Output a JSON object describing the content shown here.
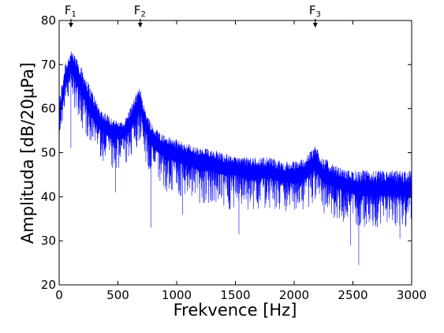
{
  "chart_data": {
    "type": "line",
    "title": "",
    "xlabel": "Frekvence [Hz]",
    "ylabel": "Amplituda [dB/20μPa]",
    "xlim": [
      0,
      3000
    ],
    "ylim": [
      20,
      80
    ],
    "x_ticks": [
      0,
      500,
      1000,
      1500,
      2000,
      2500,
      3000
    ],
    "y_ticks": [
      20,
      30,
      40,
      50,
      60,
      70,
      80
    ],
    "grid": false,
    "legend": "none",
    "series_color": "#0000ff",
    "markers": [
      {
        "label": "F",
        "sub": "1",
        "x": 100
      },
      {
        "label": "F",
        "sub": "2",
        "x": 690
      },
      {
        "label": "F",
        "sub": "3",
        "x": 2180
      }
    ],
    "series": [
      {
        "x": [
          0,
          50,
          100,
          150,
          200,
          250,
          300,
          350,
          400,
          450,
          500,
          550,
          600,
          650,
          690,
          730,
          800,
          900,
          1000,
          1100,
          1200,
          1300,
          1400,
          1500,
          1600,
          1700,
          1800,
          1900,
          2000,
          2100,
          2180,
          2250,
          2350,
          2450,
          2550,
          2650,
          2750,
          2850,
          2950,
          3000
        ],
        "mean": [
          57,
          66,
          70,
          68,
          65,
          62,
          59,
          57,
          56,
          55,
          55,
          55,
          57,
          60,
          62,
          57,
          53,
          51,
          50,
          49,
          48,
          48,
          47,
          47,
          46,
          46,
          46,
          45,
          45,
          46,
          48,
          45,
          44,
          43,
          42,
          42,
          42,
          42,
          42,
          42
        ],
        "upper": [
          62,
          71,
          73,
          72,
          69,
          66,
          63,
          60,
          59,
          58,
          57,
          57,
          60,
          63,
          65,
          60,
          56,
          54,
          53,
          52,
          51,
          51,
          50,
          49,
          49,
          49,
          49,
          48,
          48,
          49,
          52,
          49,
          47,
          46,
          46,
          46,
          46,
          46,
          46,
          46
        ],
        "lower": [
          52,
          60,
          62,
          59,
          55,
          52,
          50,
          49,
          47,
          46,
          46,
          46,
          47,
          50,
          53,
          48,
          43,
          41,
          40,
          39,
          38,
          38,
          37,
          37,
          37,
          37,
          37,
          36,
          36,
          37,
          39,
          36,
          35,
          34,
          33,
          33,
          33,
          33,
          33,
          33
        ],
        "dips": [
          {
            "x": 780,
            "y": 33
          },
          {
            "x": 1530,
            "y": 31.5
          },
          {
            "x": 2550,
            "y": 24.5
          },
          {
            "x": 2480,
            "y": 29
          },
          {
            "x": 2900,
            "y": 30.5
          },
          {
            "x": 480,
            "y": 41
          },
          {
            "x": 100,
            "y": 51
          },
          {
            "x": 1050,
            "y": 36
          }
        ]
      }
    ]
  }
}
